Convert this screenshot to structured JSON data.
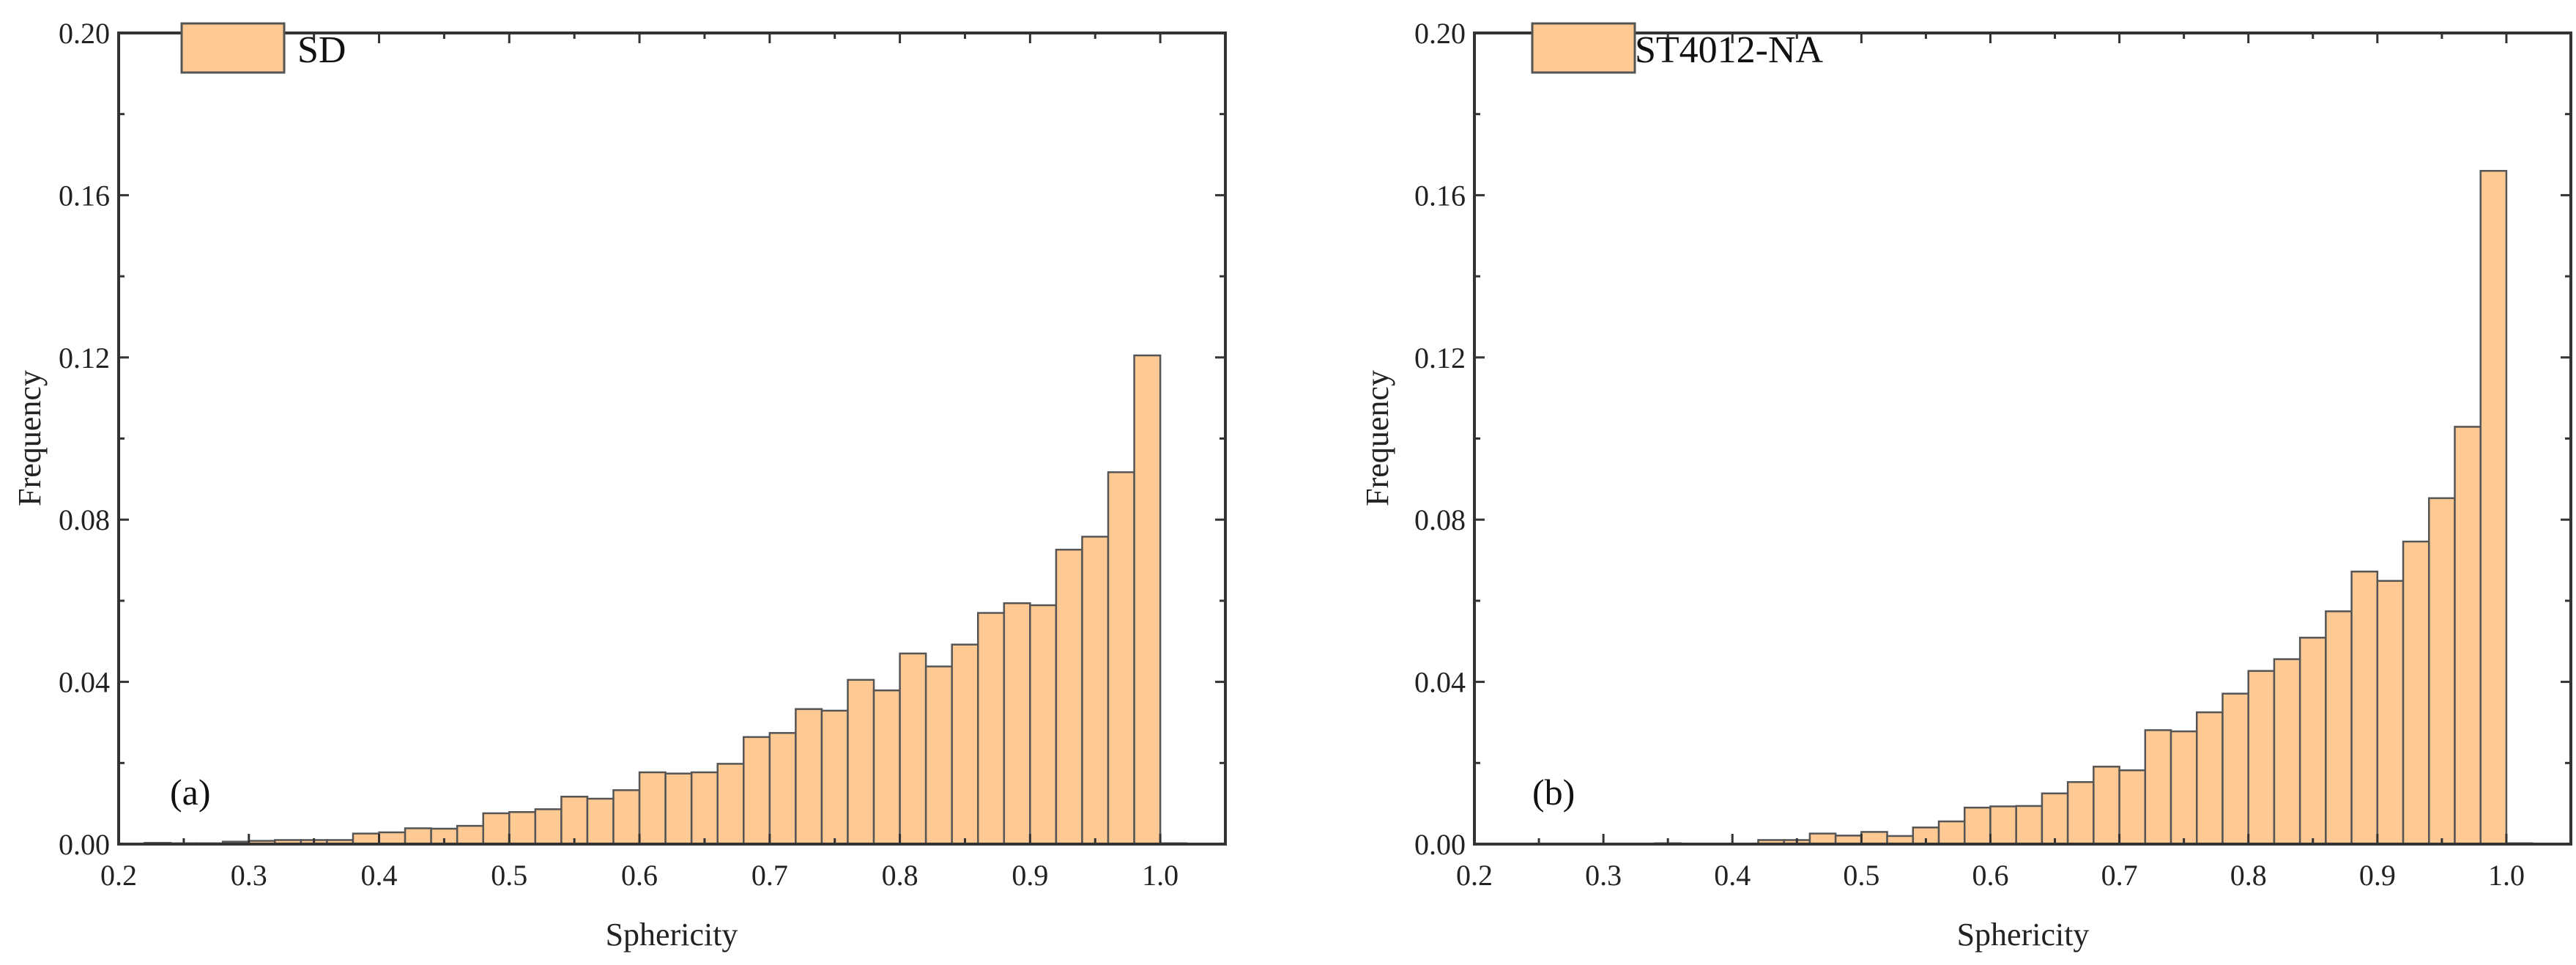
{
  "colors": {
    "bar_fill": "#FFC994",
    "bar_stroke": "#555555",
    "axis": "#333333"
  },
  "chart_data": [
    {
      "type": "bar",
      "panel_label": "(a)",
      "legend": "SD",
      "legend_placement": "top-left",
      "xlabel": "Sphericity",
      "ylabel": "Frequency",
      "xlim": [
        0.2,
        1.05
      ],
      "ylim": [
        0,
        0.2
      ],
      "xticks": [
        "0.2",
        "0.3",
        "0.4",
        "0.5",
        "0.6",
        "0.7",
        "0.8",
        "0.9",
        "1.0"
      ],
      "yticks": [
        "0.00",
        "0.04",
        "0.08",
        "0.12",
        "0.16",
        "0.20"
      ],
      "grid": false,
      "bin_width": 0.02,
      "bin_starts": [
        0.22,
        0.24,
        0.26,
        0.28,
        0.3,
        0.32,
        0.34,
        0.36,
        0.38,
        0.4,
        0.42,
        0.44,
        0.46,
        0.48,
        0.5,
        0.52,
        0.54,
        0.56,
        0.58,
        0.6,
        0.62,
        0.64,
        0.66,
        0.68,
        0.7,
        0.72,
        0.74,
        0.76,
        0.78,
        0.8,
        0.82,
        0.84,
        0.86,
        0.88,
        0.9,
        0.92,
        0.94,
        0.96,
        0.98,
        1.0
      ],
      "values": [
        0.0003,
        0.0002,
        0.0002,
        0.0006,
        0.0008,
        0.001,
        0.001,
        0.001,
        0.0026,
        0.0029,
        0.0039,
        0.0038,
        0.0045,
        0.0076,
        0.0079,
        0.0086,
        0.0117,
        0.0112,
        0.0133,
        0.0177,
        0.0174,
        0.0177,
        0.0198,
        0.0264,
        0.0274,
        0.0333,
        0.0329,
        0.0405,
        0.0379,
        0.047,
        0.0438,
        0.0492,
        0.057,
        0.0594,
        0.0589,
        0.0726,
        0.0758,
        0.0917,
        0.1205,
        0.0002
      ]
    },
    {
      "type": "bar",
      "panel_label": "(b)",
      "legend": "ST4012-NA",
      "legend_placement": "top-left",
      "xlabel": "Sphericity",
      "ylabel": "Frequency",
      "xlim": [
        0.2,
        1.05
      ],
      "ylim": [
        0,
        0.2
      ],
      "xticks": [
        "0.2",
        "0.3",
        "0.4",
        "0.5",
        "0.6",
        "0.7",
        "0.8",
        "0.9",
        "1.0"
      ],
      "yticks": [
        "0.00",
        "0.04",
        "0.08",
        "0.12",
        "0.16",
        "0.20"
      ],
      "grid": false,
      "bin_width": 0.02,
      "bin_starts": [
        0.34,
        0.42,
        0.44,
        0.46,
        0.48,
        0.5,
        0.52,
        0.54,
        0.56,
        0.58,
        0.6,
        0.62,
        0.64,
        0.66,
        0.68,
        0.7,
        0.72,
        0.74,
        0.76,
        0.78,
        0.8,
        0.82,
        0.84,
        0.86,
        0.88,
        0.9,
        0.92,
        0.94,
        0.96,
        0.98,
        1.0
      ],
      "values": [
        0.0002,
        0.001,
        0.001,
        0.0026,
        0.0021,
        0.003,
        0.002,
        0.0041,
        0.0056,
        0.009,
        0.0093,
        0.0094,
        0.0125,
        0.0153,
        0.0191,
        0.0182,
        0.0281,
        0.0278,
        0.0325,
        0.0371,
        0.0427,
        0.0456,
        0.0509,
        0.0574,
        0.0672,
        0.0649,
        0.0746,
        0.0853,
        0.1029,
        0.166,
        0.0002
      ]
    }
  ]
}
